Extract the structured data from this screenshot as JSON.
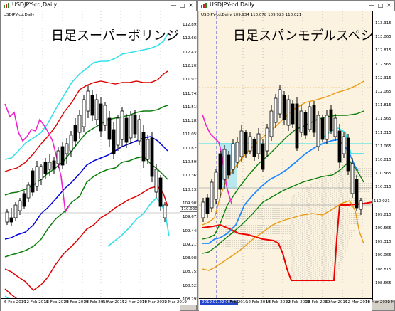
{
  "colors": {
    "upper2": "#33e0e8",
    "upper1": "#dd0000",
    "upper1b": "#f0a020",
    "middle": "#0a7d0a",
    "sma": "#0000dd",
    "lagging": "#ee22cc",
    "ichimoku_red": "#ee0000",
    "ichimoku_blue": "#2288ff",
    "cloud_hatch": "#777777",
    "left_bg": "#ffffff",
    "right_bg": "#fbf3e0",
    "candle": "#000000"
  },
  "left_window": {
    "title": "USDJPY-cd,Daily",
    "info": "USDJPY-cd,Daily",
    "overlay_title": "日足スーパーボリンジャー",
    "price_labels": [
      "112.895",
      "112.665",
      "112.435",
      "112.205",
      "111.975",
      "111.745",
      "111.515",
      "111.285",
      "111.055",
      "110.825",
      "110.595",
      "110.365",
      "110.135",
      "109.905",
      "109.675",
      "109.445",
      "109.215",
      "108.985",
      "108.755",
      "108.525",
      "108.295"
    ],
    "date_labels": [
      "6 Feb 2019",
      "12 Feb 2019",
      "18 Feb 2019",
      "22 Feb 2019",
      "28 Feb 2019",
      "6 Mar 2019",
      "12 Mar 2019",
      "18 Mar 2019",
      "22 Mar 2019"
    ],
    "current_price": "110.020"
  },
  "right_window": {
    "title": "USDJPY-cd,Daily",
    "info": "USDJPY-cd,Daily  109.934 110.078 109.923 110.021",
    "overlay_title": "日足スパンモデルスペシャル",
    "price_labels": [
      "113.315",
      "113.065",
      "112.815",
      "112.565",
      "112.315",
      "112.065",
      "111.815",
      "111.565",
      "111.315",
      "111.065",
      "110.815",
      "110.565",
      "110.315",
      "110.065",
      "109.815",
      "109.565",
      "109.315",
      "109.065",
      "108.815",
      "108.565"
    ],
    "date_labels": [
      "2019.01.22 00:00",
      "6 Feb 2019",
      "12 Feb 2019",
      "18 Feb 2019",
      "22 Feb 2019",
      "28 Feb 2019",
      "6 Mar 2019",
      "12 Mar 2019",
      "18 Mar 2019",
      "22 Mar 2019"
    ],
    "current_price": "110.021"
  }
}
